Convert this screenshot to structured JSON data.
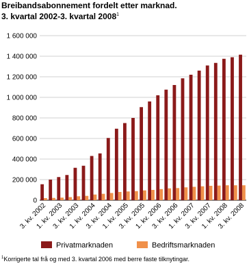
{
  "chart_data": {
    "type": "bar",
    "title": "Breibandsabonnement fordelt etter marknad.",
    "subtitle": "3. kvartal 2002-3. kvartal 2008",
    "subtitle_note": "1",
    "footnote_marker": "1",
    "footnote": "Korrigerte tal frå og med 3. kvartal 2006 med berre faste tilknytingar.",
    "categories": [
      "3. kv. 2002",
      null,
      "1. kv. 2003",
      null,
      "3. kv. 2003",
      null,
      "1. kv. 2004",
      null,
      "3. kv. 2004",
      null,
      "1. kv. 2005",
      null,
      "3. kv. 2005",
      null,
      "1. kv. 2006",
      null,
      "3. kv. 2006",
      null,
      "1. kv. 2007",
      null,
      "3. kv. 2007",
      null,
      "1. kv. 2008",
      null,
      "3. kv. 2008"
    ],
    "series": [
      {
        "name": "Privatmarknaden",
        "color": "#8b1a1a",
        "values": [
          155000,
          200000,
          225000,
          245000,
          315000,
          335000,
          430000,
          455000,
          605000,
          695000,
          750000,
          800000,
          905000,
          960000,
          1020000,
          1075000,
          1120000,
          1185000,
          1220000,
          1260000,
          1310000,
          1335000,
          1375000,
          1390000,
          1415000
        ]
      },
      {
        "name": "Bedriftsmarknaden",
        "color": "#f0904a",
        "values": [
          20000,
          22000,
          25000,
          30000,
          38000,
          42000,
          55000,
          62000,
          70000,
          80000,
          85000,
          88000,
          95000,
          100000,
          108000,
          115000,
          118000,
          125000,
          130000,
          135000,
          140000,
          142000,
          145000,
          145000,
          145000
        ]
      }
    ],
    "ylim": [
      0,
      1600000
    ],
    "yticks": [
      0,
      {
        "value": 200000,
        "label": "200 000"
      },
      {
        "value": 400000,
        "label": "400 000"
      },
      {
        "value": 600000,
        "label": "600 000"
      },
      {
        "value": 800000,
        "label": "800 000"
      },
      {
        "value": 1000000,
        "label": "1 000 000"
      },
      {
        "value": 1200000,
        "label": "1 200 000"
      },
      {
        "value": 1400000,
        "label": "1 400 000"
      },
      {
        "value": 1600000,
        "label": "1 600 000"
      }
    ],
    "grid": true
  }
}
